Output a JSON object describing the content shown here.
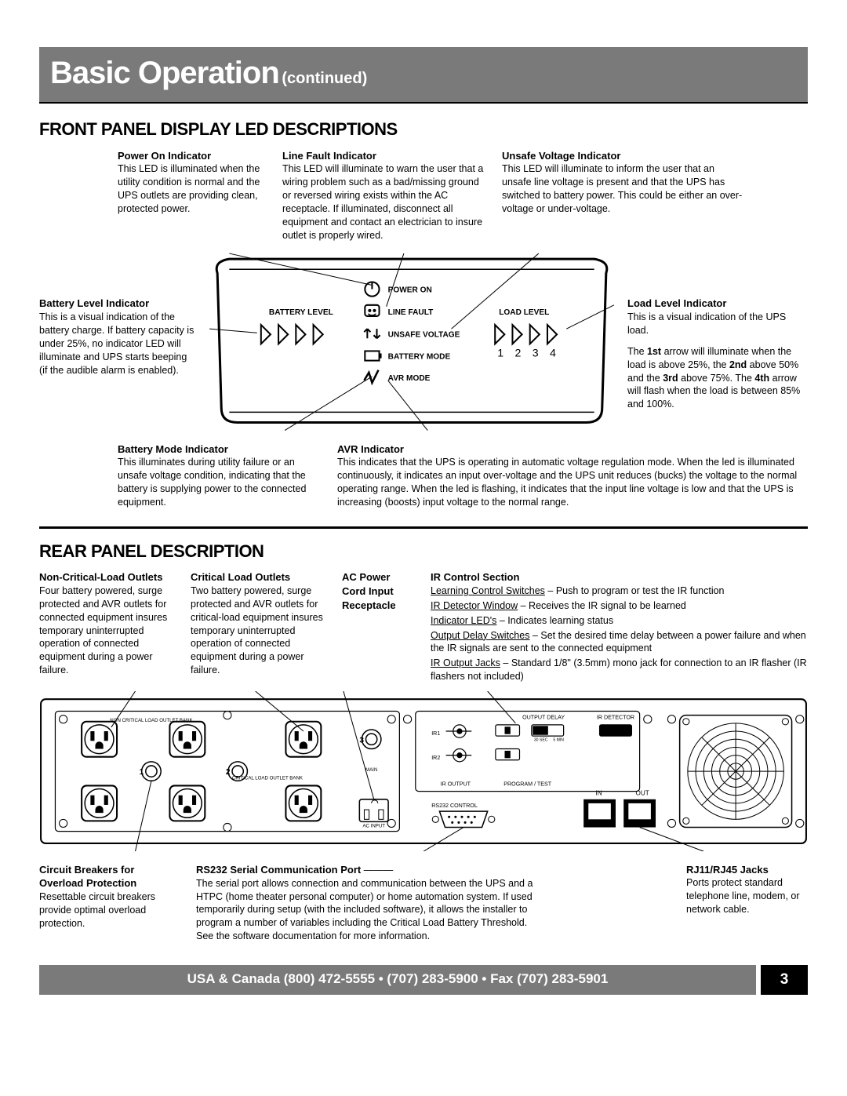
{
  "header": {
    "title": "Basic Operation",
    "subtitle": "(continued)"
  },
  "section1": {
    "title": "FRONT PANEL DISPLAY LED DESCRIPTIONS"
  },
  "front": {
    "power_on": {
      "label": "Power On Indicator",
      "text": "This LED is illuminated when the utility condition is normal and the UPS outlets are providing clean, protected power."
    },
    "line_fault": {
      "label": "Line Fault Indicator",
      "text": "This LED will illuminate to warn the user that a wiring problem such as a bad/missing ground or reversed wiring exists within the AC receptacle. If illuminated, disconnect all equipment and contact an electrician to insure outlet is properly wired."
    },
    "unsafe": {
      "label": "Unsafe Voltage Indicator",
      "text": "This LED will illuminate to inform the user that an unsafe line voltage is present and that the UPS has switched to battery power. This could be either an over-voltage or under-voltage."
    },
    "battery_level": {
      "label": "Battery Level Indicator",
      "text": "This is a visual indication of the battery charge. If battery capacity is under 25%, no indicator LED will illuminate and UPS starts beeping (if the audible alarm is enabled)."
    },
    "load_level": {
      "label": "Load Level Indicator",
      "text1": "This is a visual indication of the UPS load.",
      "text2": "The 1st arrow will illuminate when the load is above 25%, the 2nd above 50% and the 3rd above 75%. The 4th arrow will flash when the load is between 85% and 100%."
    },
    "battery_mode": {
      "label": "Battery Mode Indicator",
      "text": "This illuminates during utility failure or an unsafe voltage condition, indicating that the battery is supplying power to the connected equipment."
    },
    "avr": {
      "label": "AVR Indicator",
      "text": "This indicates that the UPS is operating in automatic voltage regulation mode. When the led is illuminated continuously, it indicates an input over-voltage and the UPS unit reduces (bucks) the voltage to the normal operating range. When the led is flashing, it indicates that the input line voltage is low and that the UPS is increasing (boosts) input voltage to the normal range."
    },
    "panel_labels": {
      "battery_level": "BATTERY LEVEL",
      "load_level": "LOAD LEVEL",
      "power_on": "POWER ON",
      "line_fault": "LINE FAULT",
      "unsafe": "UNSAFE VOLTAGE",
      "battery_mode": "BATTERY MODE",
      "avr": "AVR MODE",
      "nums": [
        "1",
        "2",
        "3",
        "4"
      ]
    }
  },
  "section2": {
    "title": "REAR PANEL DESCRIPTION"
  },
  "rear": {
    "noncrit": {
      "label": "Non-Critical-Load Outlets",
      "text": "Four battery powered, surge protected and AVR outlets for connected equipment insures temporary uninterrupted operation of connected equipment during a power failure."
    },
    "crit": {
      "label": "Critical Load Outlets",
      "text": "Two battery powered, surge protected and AVR outlets for critical-load equipment insures temporary uninterrupted operation of connected equipment during a power failure."
    },
    "acpower": {
      "label": "AC Power Cord Input Receptacle"
    },
    "ir": {
      "label": "IR Control Section",
      "items": [
        {
          "u": "Learning Control Switches",
          "t": " – Push to program or test the IR function"
        },
        {
          "u": "IR Detector Window",
          "t": " – Receives the IR signal to be learned"
        },
        {
          "u": "Indicator LED's",
          "t": " – Indicates learning status"
        },
        {
          "u": "Output Delay Switches",
          "t": " – Set the desired time delay between a power failure and when the IR signals are sent to the connected equipment"
        },
        {
          "u": "IR Output Jacks",
          "t": " – Standard 1/8\" (3.5mm) mono jack for connection to an IR flasher (IR flashers not included)"
        }
      ]
    },
    "breakers": {
      "label": "Circuit Breakers for Overload Protection",
      "text": "Resettable circuit breakers provide optimal overload protection."
    },
    "rs232": {
      "label": "RS232 Serial Communication Port",
      "text": "The serial port allows connection and communication between the UPS and a HTPC (home theater personal computer) or home automation system. If used temporarily during setup (with the included software), it allows the installer to program a number of variables including the Critical Load Battery Threshold. See the software documentation for more information."
    },
    "rj": {
      "label": "RJ11/RJ45 Jacks",
      "text": "Ports protect standard telephone line, modem, or network cable."
    },
    "panel_labels": {
      "noncrit": "NON CRITICAL LOAD OUTLET BANK",
      "crit": "CRITICAL LOAD OUTLET BANK",
      "main": "MAIN",
      "acinput": "AC INPUT",
      "ir1": "IR1",
      "ir2": "IR2",
      "iroutput": "IR OUTPUT",
      "program": "PROGRAM / TEST",
      "delay": "OUTPUT DELAY",
      "sec30": "30 SEC",
      "min5": "5 MIN",
      "irdet": "IR DETECTOR",
      "rs232": "RS232 CONTROL",
      "in": "IN",
      "out": "OUT",
      "b1": "1",
      "b2": "2",
      "b3": "3"
    }
  },
  "footer": {
    "left": "USA & Canada (800) 472-5555 • (707) 283-5900 • Fax (707) 283-5901",
    "page": "3"
  },
  "colors": {
    "header_bg": "#7a7a7a",
    "footer_bg": "#7a7a7a",
    "black": "#000000"
  }
}
